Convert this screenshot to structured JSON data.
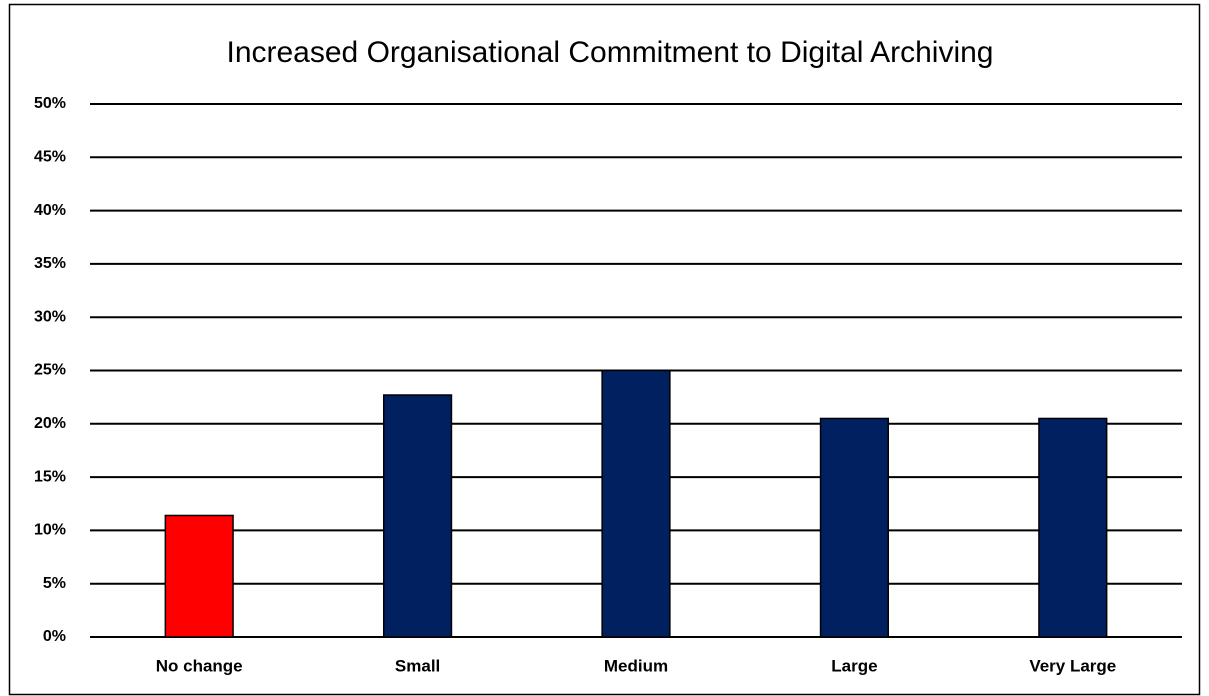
{
  "chart_data": {
    "type": "bar",
    "title": "Increased Organisational Commitment to Digital Archiving",
    "categories": [
      "No change",
      "Small",
      "Medium",
      "Large",
      "Very Large"
    ],
    "values": [
      11.4,
      22.7,
      25,
      20.5,
      20.5
    ],
    "colors": [
      "#ff0000",
      "#002060",
      "#002060",
      "#002060",
      "#002060"
    ],
    "ylim": [
      0,
      50
    ],
    "yticks": [
      {
        "value": 0,
        "label": "0%"
      },
      {
        "value": 5,
        "label": "5%"
      },
      {
        "value": 10,
        "label": "10%"
      },
      {
        "value": 15,
        "label": "15%"
      },
      {
        "value": 20,
        "label": "20%"
      },
      {
        "value": 25,
        "label": "25%"
      },
      {
        "value": 30,
        "label": "30%"
      },
      {
        "value": 35,
        "label": "35%"
      },
      {
        "value": 40,
        "label": "40%"
      },
      {
        "value": 45,
        "label": "45%"
      },
      {
        "value": 50,
        "label": "50%"
      }
    ],
    "grid": true
  }
}
